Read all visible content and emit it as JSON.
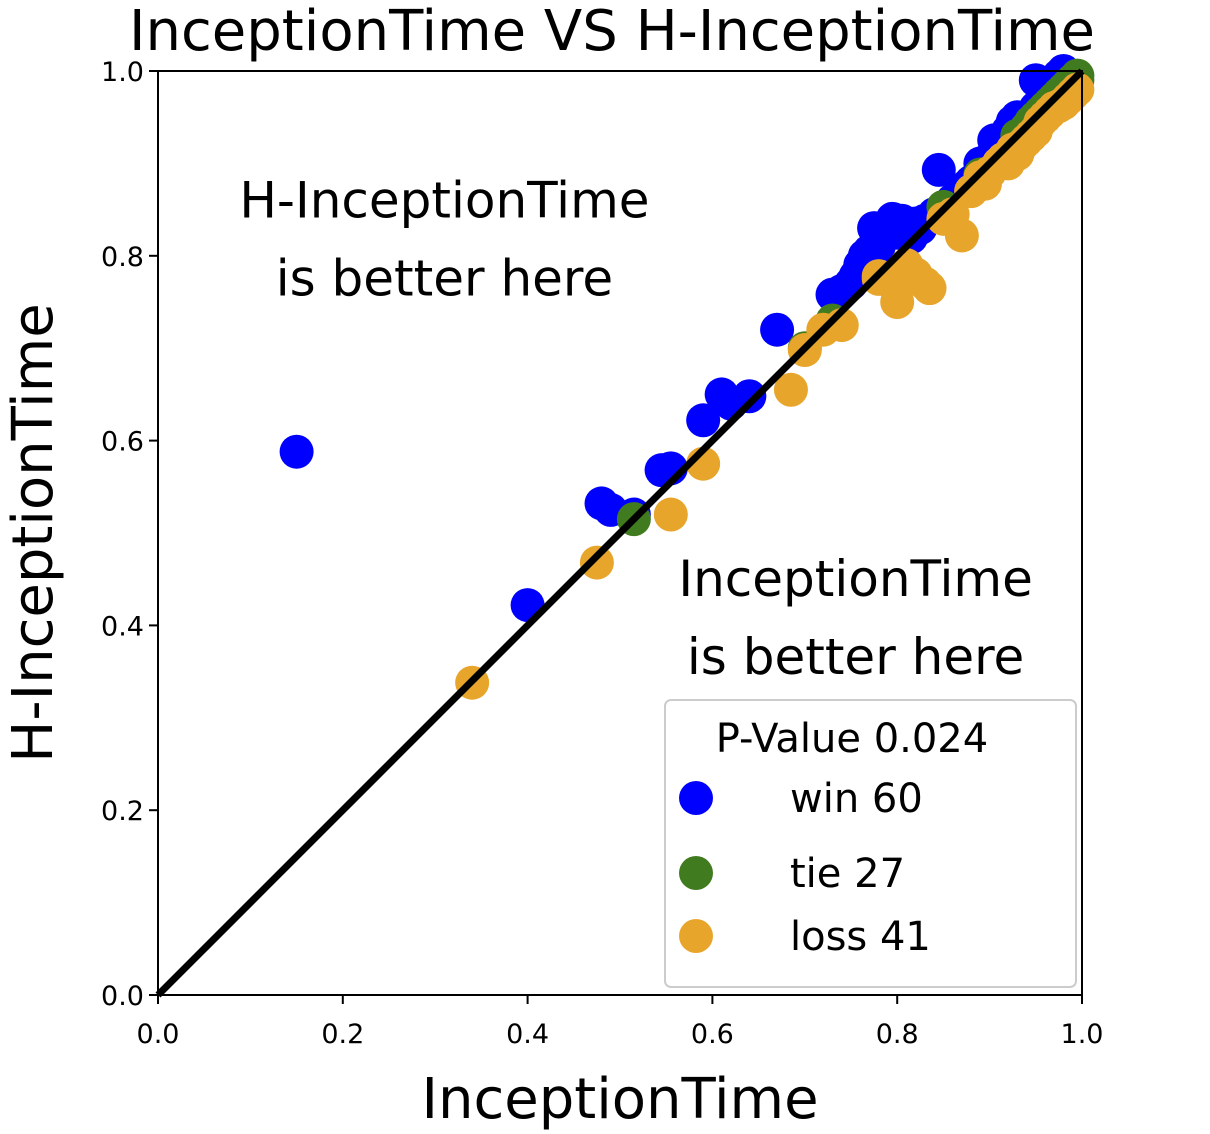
{
  "chart_data": {
    "type": "scatter",
    "title": "InceptionTime VS H-InceptionTime",
    "xlabel": "InceptionTime",
    "ylabel": "H-InceptionTime",
    "xlim": [
      0.0,
      1.0
    ],
    "ylim": [
      0.0,
      1.0
    ],
    "x_ticks": [
      "0.0",
      "0.2",
      "0.4",
      "0.6",
      "0.8",
      "1.0"
    ],
    "y_ticks": [
      "0.0",
      "0.2",
      "0.4",
      "0.6",
      "0.8",
      "1.0"
    ],
    "grid": false,
    "diagonal_line": {
      "from": [
        0.0,
        0.0
      ],
      "to": [
        1.0,
        1.0
      ],
      "color": "#000000"
    },
    "annotations": [
      {
        "lines": [
          "H-InceptionTime",
          "is better here"
        ],
        "x": 0.31,
        "y": 0.82
      },
      {
        "lines": [
          "InceptionTime",
          "is better here"
        ],
        "x": 0.755,
        "y": 0.41
      }
    ],
    "legend": {
      "title": "P-Value 0.024",
      "placement": "lower-right",
      "entries": [
        {
          "label": "win 60",
          "color": "#0000ff"
        },
        {
          "label": "tie 27",
          "color": "#417b1f"
        },
        {
          "label": "loss 41",
          "color": "#e8a52b"
        }
      ]
    },
    "series": [
      {
        "name": "win",
        "color": "#0000ff",
        "points": [
          [
            0.15,
            0.588
          ],
          [
            0.4,
            0.422
          ],
          [
            0.48,
            0.532
          ],
          [
            0.49,
            0.525
          ],
          [
            0.515,
            0.52
          ],
          [
            0.545,
            0.568
          ],
          [
            0.555,
            0.57
          ],
          [
            0.59,
            0.622
          ],
          [
            0.61,
            0.65
          ],
          [
            0.62,
            0.64
          ],
          [
            0.64,
            0.648
          ],
          [
            0.67,
            0.72
          ],
          [
            0.73,
            0.758
          ],
          [
            0.74,
            0.762
          ],
          [
            0.75,
            0.77
          ],
          [
            0.755,
            0.778
          ],
          [
            0.76,
            0.79
          ],
          [
            0.765,
            0.8
          ],
          [
            0.77,
            0.805
          ],
          [
            0.775,
            0.83
          ],
          [
            0.78,
            0.81
          ],
          [
            0.785,
            0.82
          ],
          [
            0.79,
            0.833
          ],
          [
            0.795,
            0.84
          ],
          [
            0.8,
            0.825
          ],
          [
            0.805,
            0.838
          ],
          [
            0.81,
            0.832
          ],
          [
            0.815,
            0.82
          ],
          [
            0.82,
            0.835
          ],
          [
            0.825,
            0.83
          ],
          [
            0.83,
            0.838
          ],
          [
            0.84,
            0.845
          ],
          [
            0.845,
            0.893
          ],
          [
            0.85,
            0.85
          ],
          [
            0.855,
            0.855
          ],
          [
            0.86,
            0.86
          ],
          [
            0.87,
            0.87
          ],
          [
            0.875,
            0.875
          ],
          [
            0.88,
            0.88
          ],
          [
            0.89,
            0.9
          ],
          [
            0.895,
            0.895
          ],
          [
            0.9,
            0.905
          ],
          [
            0.905,
            0.925
          ],
          [
            0.91,
            0.918
          ],
          [
            0.915,
            0.915
          ],
          [
            0.92,
            0.935
          ],
          [
            0.925,
            0.945
          ],
          [
            0.93,
            0.95
          ],
          [
            0.935,
            0.94
          ],
          [
            0.94,
            0.945
          ],
          [
            0.945,
            0.95
          ],
          [
            0.95,
            0.96
          ],
          [
            0.955,
            0.965
          ],
          [
            0.96,
            0.975
          ],
          [
            0.965,
            0.985
          ],
          [
            0.97,
            0.99
          ],
          [
            0.975,
            0.995
          ],
          [
            0.98,
            1.0
          ],
          [
            0.985,
            0.992
          ],
          [
            0.95,
            0.99
          ]
        ]
      },
      {
        "name": "tie",
        "color": "#417b1f",
        "points": [
          [
            0.515,
            0.515
          ],
          [
            0.7,
            0.7
          ],
          [
            0.73,
            0.73
          ],
          [
            0.85,
            0.853
          ],
          [
            0.89,
            0.888
          ],
          [
            0.93,
            0.93
          ],
          [
            0.955,
            0.955
          ],
          [
            0.965,
            0.965
          ],
          [
            0.975,
            0.975
          ],
          [
            0.99,
            0.99
          ],
          [
            0.995,
            0.995
          ],
          [
            0.945,
            0.945
          ],
          [
            0.96,
            0.96
          ],
          [
            0.97,
            0.97
          ],
          [
            0.98,
            0.98
          ],
          [
            0.985,
            0.985
          ],
          [
            0.95,
            0.95
          ],
          [
            0.985,
            0.98
          ],
          [
            0.99,
            0.985
          ],
          [
            0.995,
            0.99
          ],
          [
            0.97,
            0.968
          ],
          [
            0.965,
            0.962
          ],
          [
            0.96,
            0.958
          ],
          [
            0.955,
            0.952
          ],
          [
            0.975,
            0.972
          ],
          [
            0.98,
            0.978
          ],
          [
            0.94,
            0.938
          ]
        ]
      },
      {
        "name": "loss",
        "color": "#e8a52b",
        "points": [
          [
            0.34,
            0.338
          ],
          [
            0.475,
            0.468
          ],
          [
            0.555,
            0.52
          ],
          [
            0.59,
            0.575
          ],
          [
            0.685,
            0.655
          ],
          [
            0.7,
            0.698
          ],
          [
            0.72,
            0.72
          ],
          [
            0.74,
            0.725
          ],
          [
            0.78,
            0.778
          ],
          [
            0.78,
            0.775
          ],
          [
            0.795,
            0.77
          ],
          [
            0.8,
            0.75
          ],
          [
            0.81,
            0.79
          ],
          [
            0.82,
            0.78
          ],
          [
            0.83,
            0.77
          ],
          [
            0.835,
            0.765
          ],
          [
            0.85,
            0.84
          ],
          [
            0.86,
            0.845
          ],
          [
            0.87,
            0.822
          ],
          [
            0.88,
            0.87
          ],
          [
            0.89,
            0.885
          ],
          [
            0.9,
            0.89
          ],
          [
            0.91,
            0.9
          ],
          [
            0.92,
            0.9
          ],
          [
            0.925,
            0.915
          ],
          [
            0.93,
            0.91
          ],
          [
            0.94,
            0.925
          ],
          [
            0.95,
            0.935
          ],
          [
            0.955,
            0.945
          ],
          [
            0.96,
            0.95
          ],
          [
            0.965,
            0.955
          ],
          [
            0.97,
            0.96
          ],
          [
            0.975,
            0.962
          ],
          [
            0.98,
            0.965
          ],
          [
            0.985,
            0.97
          ],
          [
            0.99,
            0.975
          ],
          [
            0.995,
            0.98
          ],
          [
            0.945,
            0.93
          ],
          [
            0.935,
            0.92
          ],
          [
            0.915,
            0.905
          ],
          [
            0.895,
            0.878
          ]
        ]
      }
    ]
  }
}
